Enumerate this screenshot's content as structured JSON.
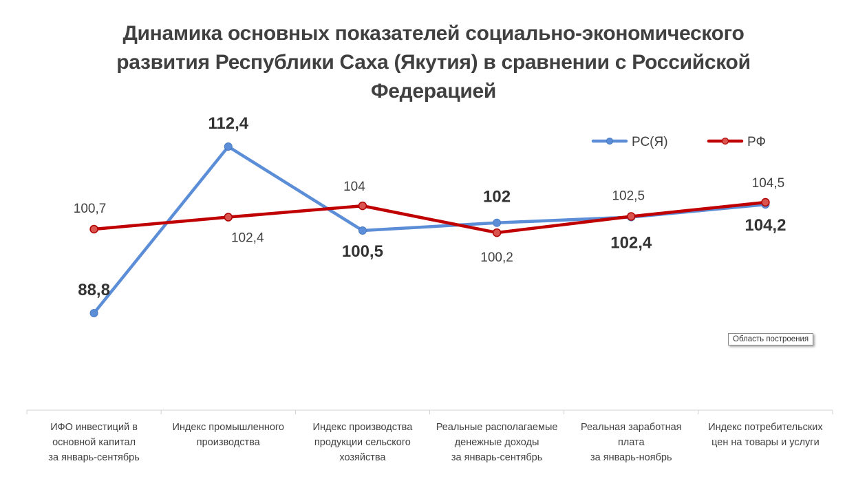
{
  "chart_data": {
    "type": "line",
    "title": "Динамика основных показателей социально-экономического развития Республики Саха (Якутия) в сравнении с Российской Федерацией",
    "title_lines": [
      "Динамика основных показателей социально-экономического",
      "развития Республики Саха (Якутия) в сравнении с Российской",
      "Федерацией"
    ],
    "categories": [
      [
        "ИФО инвестиций в",
        "основной капитал",
        "за январь-сентябрь"
      ],
      [
        "Индекс промышленного",
        "производства"
      ],
      [
        "Индекс производства",
        "продукции сельского",
        "хозяйства"
      ],
      [
        "Реальные располагаемые",
        "денежные доходы",
        "за январь-сентябрь"
      ],
      [
        "Реальная заработная",
        "плата",
        "за январь-ноябрь"
      ],
      [
        "Индекс потребительских",
        "цен на товары и услуги"
      ]
    ],
    "series": [
      {
        "name": "РС(Я)",
        "color": "#5B8ED6",
        "values": [
          88.8,
          112.4,
          100.5,
          101.6,
          102.4,
          104.2
        ],
        "labels": [
          "88,8",
          "112,4",
          "100,5",
          "102",
          "102,4",
          "104,2"
        ],
        "label_style": "bold"
      },
      {
        "name": "РФ",
        "color": "#C00000",
        "values": [
          100.7,
          102.4,
          104.0,
          100.2,
          102.5,
          104.5
        ],
        "labels": [
          "100,7",
          "102,4",
          "104",
          "100,2",
          "102,5",
          "104,5"
        ],
        "label_style": "normal"
      }
    ],
    "legend_position": "top-right",
    "grid": false
  },
  "tooltip": {
    "text": "Область построения"
  }
}
